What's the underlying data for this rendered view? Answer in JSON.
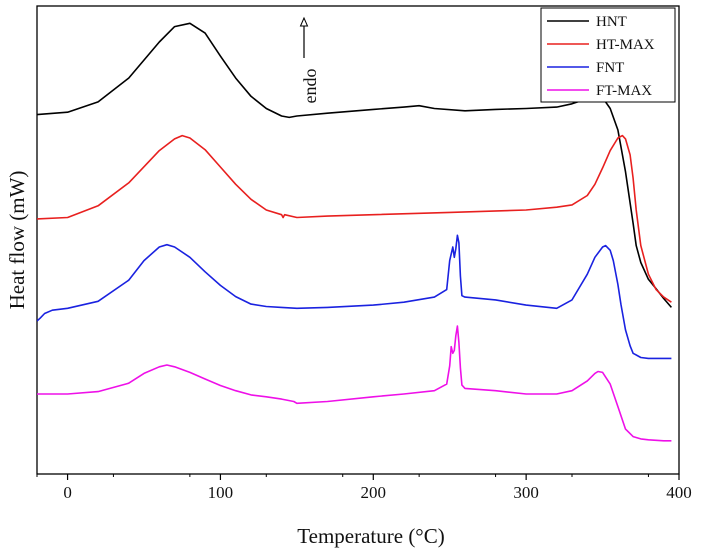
{
  "chart_data": {
    "type": "line",
    "xlabel": "Temperature (°C)",
    "ylabel": "Heat flow (mW)",
    "xlim": [
      -20,
      400
    ],
    "ylim": [
      0,
      100
    ],
    "xticks": [
      0,
      100,
      200,
      300,
      400
    ],
    "yticks_shown": false,
    "grid": false,
    "legend_position": "top-right",
    "annotation": {
      "text": "endo",
      "arrow": "up"
    },
    "series": [
      {
        "name": "HNT",
        "color": "#000000",
        "x": [
          -20,
          0,
          20,
          40,
          60,
          70,
          80,
          90,
          100,
          110,
          120,
          130,
          140,
          145,
          150,
          170,
          200,
          220,
          230,
          240,
          260,
          280,
          300,
          320,
          330,
          340,
          345,
          350,
          355,
          360,
          365,
          370,
          372,
          375,
          380,
          385,
          390,
          395
        ],
        "y": [
          76.8,
          77.3,
          79.5,
          84.6,
          92.3,
          95.6,
          96.3,
          94.2,
          89.3,
          84.6,
          80.7,
          78.1,
          76.5,
          76.2,
          76.5,
          77.1,
          77.9,
          78.4,
          78.7,
          78.1,
          77.6,
          77.9,
          78.1,
          78.4,
          79.1,
          80.2,
          80.9,
          80.4,
          78.1,
          73.5,
          64.6,
          53.6,
          48.8,
          45.2,
          41.6,
          39.6,
          37.5,
          35.6
        ]
      },
      {
        "name": "HT-MAX",
        "color": "#e8201f",
        "x": [
          -20,
          0,
          20,
          40,
          60,
          70,
          75,
          80,
          90,
          100,
          110,
          120,
          130,
          140,
          141,
          142,
          150,
          170,
          200,
          250,
          300,
          320,
          330,
          340,
          345,
          350,
          355,
          360,
          363,
          365,
          368,
          370,
          372,
          375,
          380,
          385,
          390,
          395
        ],
        "y": [
          54.5,
          54.8,
          57.3,
          62.2,
          69.1,
          71.6,
          72.3,
          71.8,
          69.3,
          65.6,
          61.9,
          58.7,
          56.4,
          55.4,
          54.8,
          55.4,
          54.8,
          55.1,
          55.4,
          55.9,
          56.4,
          57.0,
          57.5,
          59.5,
          61.9,
          65.4,
          69.1,
          71.8,
          72.3,
          71.6,
          68.2,
          63.2,
          56.4,
          48.8,
          42.7,
          39.4,
          37.8,
          36.7
        ]
      },
      {
        "name": "FNT",
        "color": "#1a22e0",
        "x": [
          -20,
          -18,
          -15,
          -10,
          0,
          20,
          40,
          50,
          60,
          65,
          70,
          80,
          90,
          100,
          110,
          120,
          130,
          140,
          150,
          170,
          200,
          220,
          240,
          248,
          250,
          252,
          253,
          254,
          255,
          256,
          257,
          258,
          260,
          280,
          300,
          320,
          330,
          340,
          345,
          350,
          352,
          355,
          357,
          360,
          362,
          365,
          368,
          370,
          375,
          380,
          390,
          395
        ],
        "y": [
          32.7,
          33.3,
          34.3,
          35.0,
          35.4,
          36.9,
          41.4,
          45.6,
          48.5,
          49.0,
          48.5,
          46.3,
          43.2,
          40.3,
          37.9,
          36.3,
          35.8,
          35.6,
          35.4,
          35.6,
          36.1,
          36.7,
          37.8,
          39.4,
          45.6,
          48.5,
          46.3,
          48.1,
          51.0,
          49.4,
          42.3,
          38.1,
          37.8,
          37.2,
          36.1,
          35.4,
          37.2,
          42.7,
          46.3,
          48.5,
          48.8,
          47.8,
          45.6,
          40.5,
          36.3,
          30.8,
          27.4,
          25.8,
          24.9,
          24.7,
          24.7,
          24.7
        ]
      },
      {
        "name": "FT-MAX",
        "color": "#ee10e8",
        "x": [
          -20,
          0,
          20,
          40,
          50,
          60,
          65,
          70,
          80,
          90,
          100,
          110,
          120,
          130,
          140,
          148,
          150,
          170,
          200,
          220,
          240,
          248,
          250,
          251,
          252,
          253,
          254,
          255,
          256,
          257,
          258,
          260,
          280,
          300,
          320,
          330,
          340,
          345,
          347,
          350,
          355,
          360,
          365,
          370,
          375,
          380,
          390,
          395
        ],
        "y": [
          17.1,
          17.1,
          17.6,
          19.4,
          21.5,
          22.9,
          23.3,
          22.9,
          21.7,
          20.3,
          18.9,
          17.8,
          16.9,
          16.5,
          16.0,
          15.5,
          15.1,
          15.5,
          16.5,
          17.1,
          17.8,
          19.2,
          23.1,
          27.2,
          25.8,
          26.4,
          29.5,
          31.6,
          28.1,
          22.7,
          19.0,
          18.3,
          17.8,
          17.1,
          17.1,
          17.8,
          19.9,
          21.5,
          21.9,
          21.7,
          19.2,
          14.4,
          9.6,
          8.0,
          7.5,
          7.3,
          7.1,
          7.1
        ]
      }
    ]
  }
}
